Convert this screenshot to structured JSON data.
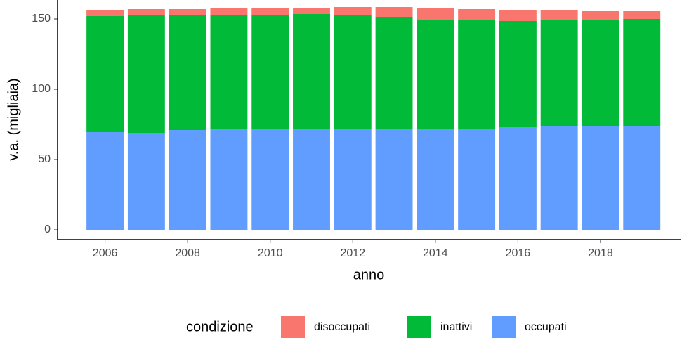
{
  "chart_data": {
    "type": "stacked_bar",
    "x_label": "anno",
    "y_label": "v.a. (migliaia)",
    "legend_title": "condizione",
    "x": [
      2006,
      2007,
      2008,
      2009,
      2010,
      2011,
      2012,
      2013,
      2014,
      2015,
      2016,
      2017,
      2018,
      2019
    ],
    "series": [
      {
        "name": "disoccupati",
        "color": "#F8766D",
        "values": [
          4.5,
          4.5,
          4,
          4.5,
          4.5,
          4.5,
          6,
          7,
          9,
          8,
          8,
          7.5,
          6.5,
          5.5
        ]
      },
      {
        "name": "inattivi",
        "color": "#00BA38",
        "values": [
          82.5,
          83.5,
          82,
          81,
          81,
          81.5,
          80.5,
          79.5,
          77.5,
          77,
          75.5,
          75,
          75.5,
          76
        ]
      },
      {
        "name": "occupati",
        "color": "#619CFF",
        "values": [
          69.5,
          69,
          71,
          72,
          72,
          72,
          72,
          72,
          71.5,
          72,
          73,
          74,
          74,
          74
        ]
      }
    ],
    "xlim": [
      2004.85,
      2019.94
    ],
    "xticks": [
      2006,
      2008,
      2010,
      2012,
      2014,
      2016,
      2018
    ],
    "ylim": [
      -7,
      163.5
    ],
    "yticks": [
      0,
      50,
      100,
      150
    ],
    "legend_position": "bottom"
  }
}
